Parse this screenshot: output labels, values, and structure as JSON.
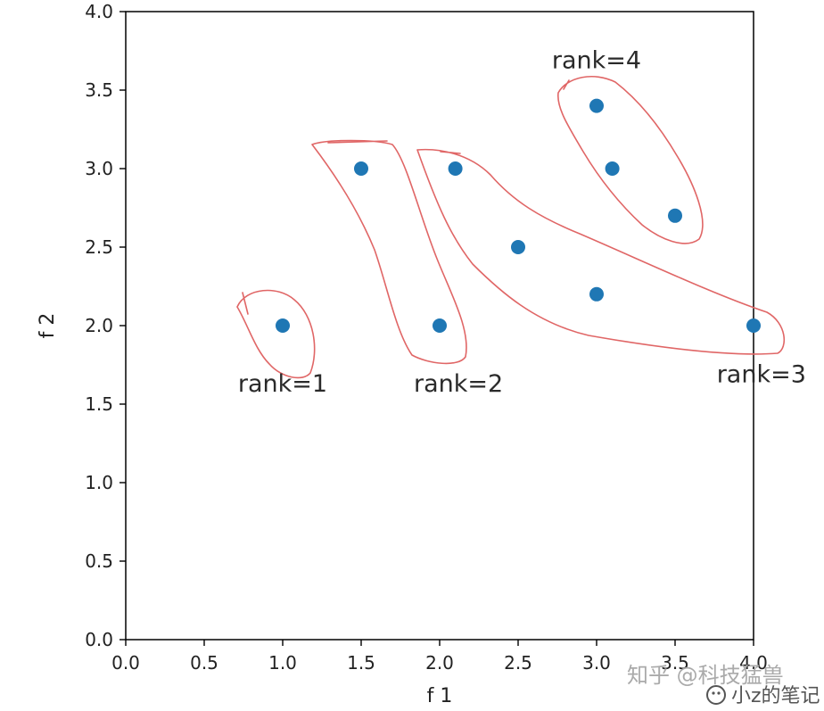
{
  "chart_data": {
    "type": "scatter",
    "xlabel": "f 1",
    "ylabel": "f 2",
    "xlim": [
      0.0,
      4.0
    ],
    "ylim": [
      0.0,
      4.0
    ],
    "x_ticks": [
      "0.0",
      "0.5",
      "1.0",
      "1.5",
      "2.0",
      "2.5",
      "3.0",
      "3.5",
      "4.0"
    ],
    "y_ticks": [
      "0.0",
      "0.5",
      "1.0",
      "1.5",
      "2.0",
      "2.5",
      "3.0",
      "3.5",
      "4.0"
    ],
    "grid": false,
    "marker_color": "#1f77b4",
    "group_outline_color": "#e06666",
    "points": [
      {
        "x": 1.0,
        "y": 2.0
      },
      {
        "x": 1.5,
        "y": 3.0
      },
      {
        "x": 2.0,
        "y": 2.0
      },
      {
        "x": 2.1,
        "y": 3.0
      },
      {
        "x": 2.5,
        "y": 2.5
      },
      {
        "x": 3.0,
        "y": 2.2
      },
      {
        "x": 4.0,
        "y": 2.0
      },
      {
        "x": 3.0,
        "y": 3.4
      },
      {
        "x": 3.1,
        "y": 3.0
      },
      {
        "x": 3.5,
        "y": 2.7
      }
    ],
    "annotations": [
      {
        "text": "rank=1",
        "x": 1.0,
        "y": 1.58
      },
      {
        "text": "rank=2",
        "x": 2.12,
        "y": 1.58
      },
      {
        "text": "rank=3",
        "x": 4.05,
        "y": 1.64
      },
      {
        "text": "rank=4",
        "x": 3.0,
        "y": 3.64
      }
    ]
  },
  "watermark": {
    "line1": "知乎 @科技猛兽",
    "line2": "小z的笔记"
  }
}
